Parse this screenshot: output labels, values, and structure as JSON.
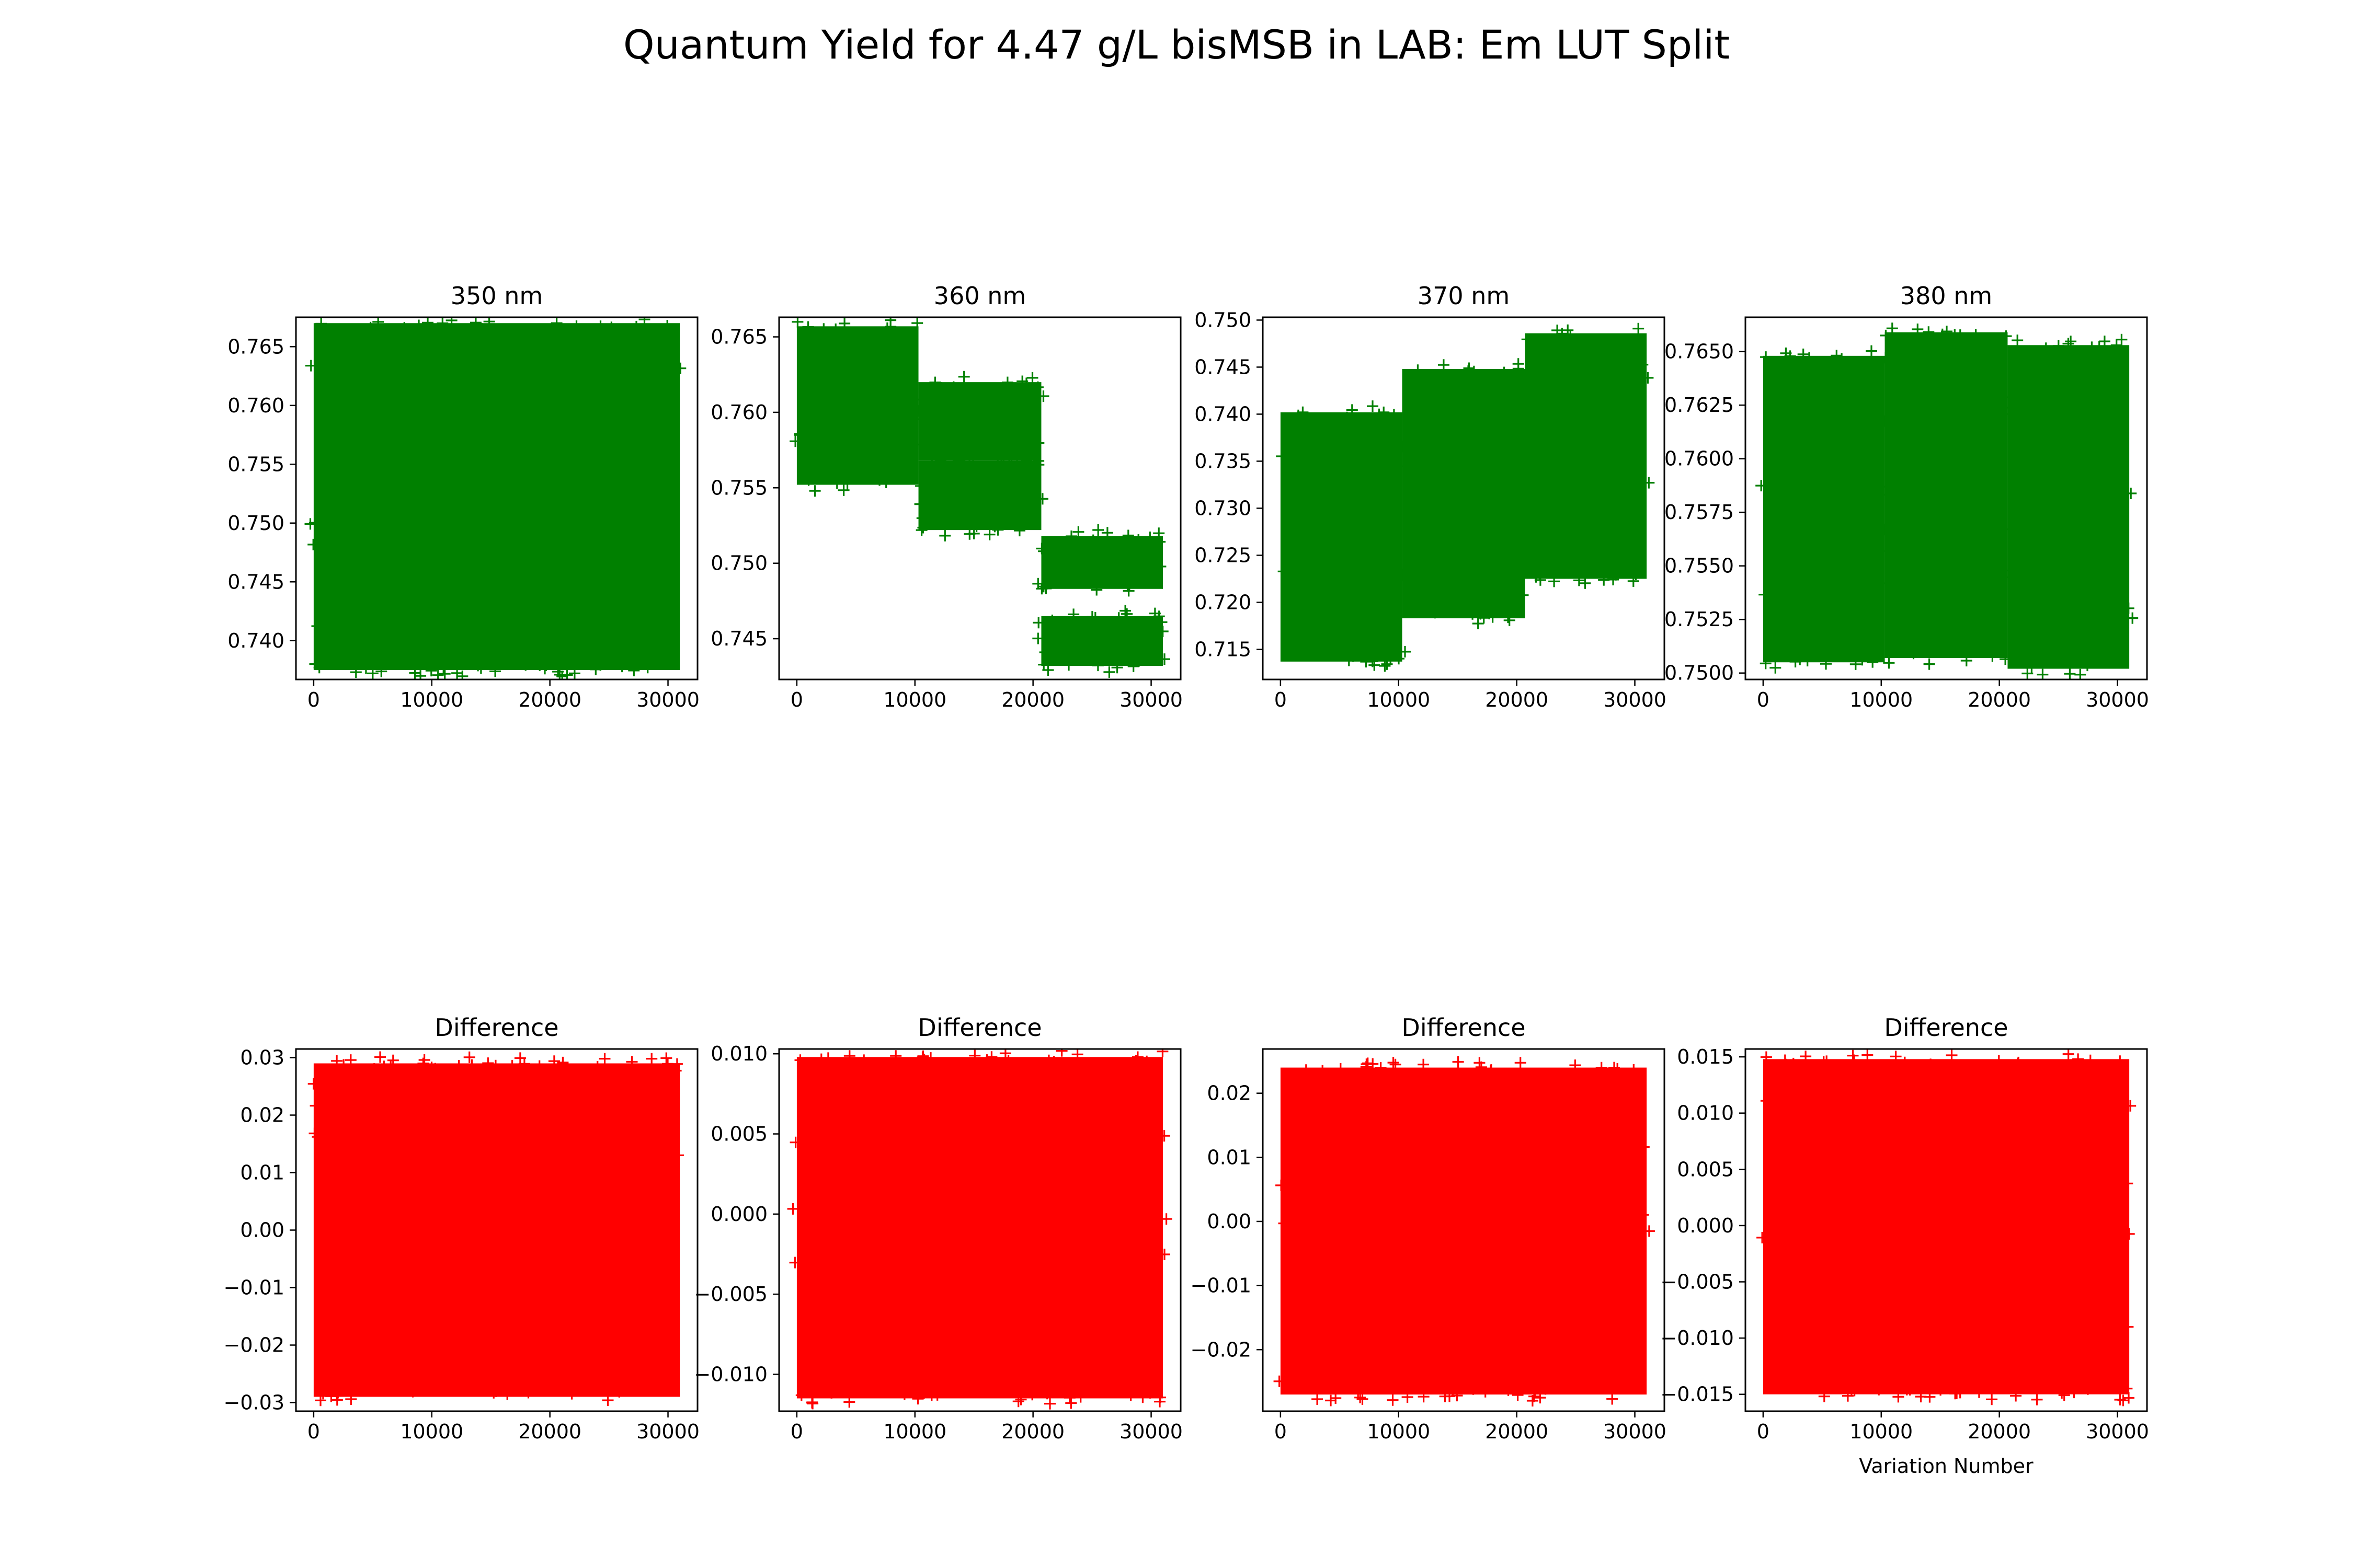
{
  "figure_title": "Quantum Yield for 4.47 g/L bisMSB in LAB: Em LUT Split",
  "colors": {
    "top": "#008000",
    "bottom": "#ff0000"
  },
  "chart_data": [
    {
      "type": "scatter",
      "marker": "+",
      "title": "350 nm",
      "xlabel": "",
      "ylabel": "",
      "xlim": [
        -1500,
        32500
      ],
      "ylim": [
        0.7367,
        0.7675
      ],
      "xticks": [
        0,
        10000,
        20000,
        30000
      ],
      "xtick_labels": [
        "0",
        "10000",
        "20000",
        "30000"
      ],
      "yticks": [
        0.74,
        0.745,
        0.75,
        0.755,
        0.76,
        0.765
      ],
      "ytick_labels": [
        "0.740",
        "0.745",
        "0.750",
        "0.755",
        "0.760",
        "0.765"
      ],
      "color": "#008000",
      "series": [
        {
          "x_range": [
            0,
            31000
          ],
          "y_min": 0.7375,
          "y_max": 0.767
        }
      ]
    },
    {
      "type": "scatter",
      "marker": "+",
      "title": "360 nm",
      "xlabel": "",
      "ylabel": "",
      "xlim": [
        -1500,
        32500
      ],
      "ylim": [
        0.7423,
        0.7663
      ],
      "xticks": [
        0,
        10000,
        20000,
        30000
      ],
      "xtick_labels": [
        "0",
        "10000",
        "20000",
        "30000"
      ],
      "yticks": [
        0.745,
        0.75,
        0.755,
        0.76,
        0.765
      ],
      "ytick_labels": [
        "0.745",
        "0.750",
        "0.755",
        "0.760",
        "0.765"
      ],
      "color": "#008000",
      "series": [
        {
          "x_range": [
            0,
            10300
          ],
          "y_min": 0.7552,
          "y_max": 0.7657
        },
        {
          "x_range": [
            10300,
            20700
          ],
          "y_min": 0.7568,
          "y_max": 0.762
        },
        {
          "x_range": [
            10300,
            20700
          ],
          "y_min": 0.7522,
          "y_max": 0.7568
        },
        {
          "x_range": [
            20700,
            31000
          ],
          "y_min": 0.7483,
          "y_max": 0.7518
        },
        {
          "x_range": [
            20700,
            31000
          ],
          "y_min": 0.7432,
          "y_max": 0.7465
        }
      ]
    },
    {
      "type": "scatter",
      "marker": "+",
      "title": "370 nm",
      "xlabel": "",
      "ylabel": "",
      "xlim": [
        -1500,
        32500
      ],
      "ylim": [
        0.7118,
        0.7503
      ],
      "xticks": [
        0,
        10000,
        20000,
        30000
      ],
      "xtick_labels": [
        "0",
        "10000",
        "20000",
        "30000"
      ],
      "yticks": [
        0.715,
        0.72,
        0.725,
        0.73,
        0.735,
        0.74,
        0.745,
        0.75
      ],
      "ytick_labels": [
        "0.715",
        "0.720",
        "0.725",
        "0.730",
        "0.735",
        "0.740",
        "0.745",
        "0.750"
      ],
      "color": "#008000",
      "series": [
        {
          "x_range": [
            0,
            10300
          ],
          "y_min": 0.7137,
          "y_max": 0.7402
        },
        {
          "x_range": [
            10300,
            20700
          ],
          "y_min": 0.7183,
          "y_max": 0.7448
        },
        {
          "x_range": [
            20700,
            31000
          ],
          "y_min": 0.7225,
          "y_max": 0.7486
        }
      ]
    },
    {
      "type": "scatter",
      "marker": "+",
      "title": "380 nm",
      "xlabel": "",
      "ylabel": "",
      "xlim": [
        -1500,
        32500
      ],
      "ylim": [
        0.7497,
        0.7666
      ],
      "xticks": [
        0,
        10000,
        20000,
        30000
      ],
      "xtick_labels": [
        "0",
        "10000",
        "20000",
        "30000"
      ],
      "yticks": [
        0.75,
        0.7525,
        0.755,
        0.7575,
        0.76,
        0.7625,
        0.765
      ],
      "ytick_labels": [
        "0.7500",
        "0.7525",
        "0.7550",
        "0.7575",
        "0.7600",
        "0.7625",
        "0.7650"
      ],
      "color": "#008000",
      "series": [
        {
          "x_range": [
            0,
            10300
          ],
          "y_min": 0.7505,
          "y_max": 0.7648
        },
        {
          "x_range": [
            10300,
            20700
          ],
          "y_min": 0.7507,
          "y_max": 0.7659
        },
        {
          "x_range": [
            20700,
            31000
          ],
          "y_min": 0.7502,
          "y_max": 0.7653
        }
      ]
    },
    {
      "type": "scatter",
      "marker": "+",
      "title": "Difference",
      "xlabel": "",
      "ylabel": "",
      "xlim": [
        -1500,
        32500
      ],
      "ylim": [
        -0.0315,
        0.0315
      ],
      "xticks": [
        0,
        10000,
        20000,
        30000
      ],
      "xtick_labels": [
        "0",
        "10000",
        "20000",
        "30000"
      ],
      "yticks": [
        -0.03,
        -0.02,
        -0.01,
        0.0,
        0.01,
        0.02,
        0.03
      ],
      "ytick_labels": [
        "−0.03",
        "−0.02",
        "−0.01",
        "0.00",
        "0.01",
        "0.02",
        "0.03"
      ],
      "color": "#ff0000",
      "series": [
        {
          "x_range": [
            0,
            31000
          ],
          "y_min": -0.029,
          "y_max": 0.029
        }
      ]
    },
    {
      "type": "scatter",
      "marker": "+",
      "title": "Difference",
      "xlabel": "",
      "ylabel": "",
      "xlim": [
        -1500,
        32500
      ],
      "ylim": [
        -0.0123,
        0.0103
      ],
      "xticks": [
        0,
        10000,
        20000,
        30000
      ],
      "xtick_labels": [
        "0",
        "10000",
        "20000",
        "30000"
      ],
      "yticks": [
        -0.01,
        -0.005,
        0.0,
        0.005,
        0.01
      ],
      "ytick_labels": [
        "−0.010",
        "−0.005",
        "0.000",
        "0.005",
        "0.010"
      ],
      "color": "#ff0000",
      "series": [
        {
          "x_range": [
            0,
            31000
          ],
          "y_min": -0.0115,
          "y_max": 0.0098
        }
      ]
    },
    {
      "type": "scatter",
      "marker": "+",
      "title": "Difference",
      "xlabel": "",
      "ylabel": "",
      "xlim": [
        -1500,
        32500
      ],
      "ylim": [
        -0.0296,
        0.0269
      ],
      "xticks": [
        0,
        10000,
        20000,
        30000
      ],
      "xtick_labels": [
        "0",
        "10000",
        "20000",
        "30000"
      ],
      "yticks": [
        -0.02,
        -0.01,
        0.0,
        0.01,
        0.02
      ],
      "ytick_labels": [
        "−0.02",
        "−0.01",
        "0.00",
        "0.01",
        "0.02"
      ],
      "color": "#ff0000",
      "series": [
        {
          "x_range": [
            0,
            31000
          ],
          "y_min": -0.027,
          "y_max": 0.024
        }
      ]
    },
    {
      "type": "scatter",
      "marker": "+",
      "title": "Difference",
      "xlabel": "Variation Number",
      "ylabel": "",
      "xlim": [
        -1500,
        32500
      ],
      "ylim": [
        -0.0165,
        0.0157
      ],
      "xticks": [
        0,
        10000,
        20000,
        30000
      ],
      "xtick_labels": [
        "0",
        "10000",
        "20000",
        "30000"
      ],
      "yticks": [
        -0.015,
        -0.01,
        -0.005,
        0.0,
        0.005,
        0.01,
        0.015
      ],
      "ytick_labels": [
        "−0.015",
        "−0.010",
        "−0.005",
        "0.000",
        "0.005",
        "0.010",
        "0.015"
      ],
      "color": "#ff0000",
      "series": [
        {
          "x_range": [
            0,
            31000
          ],
          "y_min": -0.015,
          "y_max": 0.0148
        }
      ]
    }
  ]
}
